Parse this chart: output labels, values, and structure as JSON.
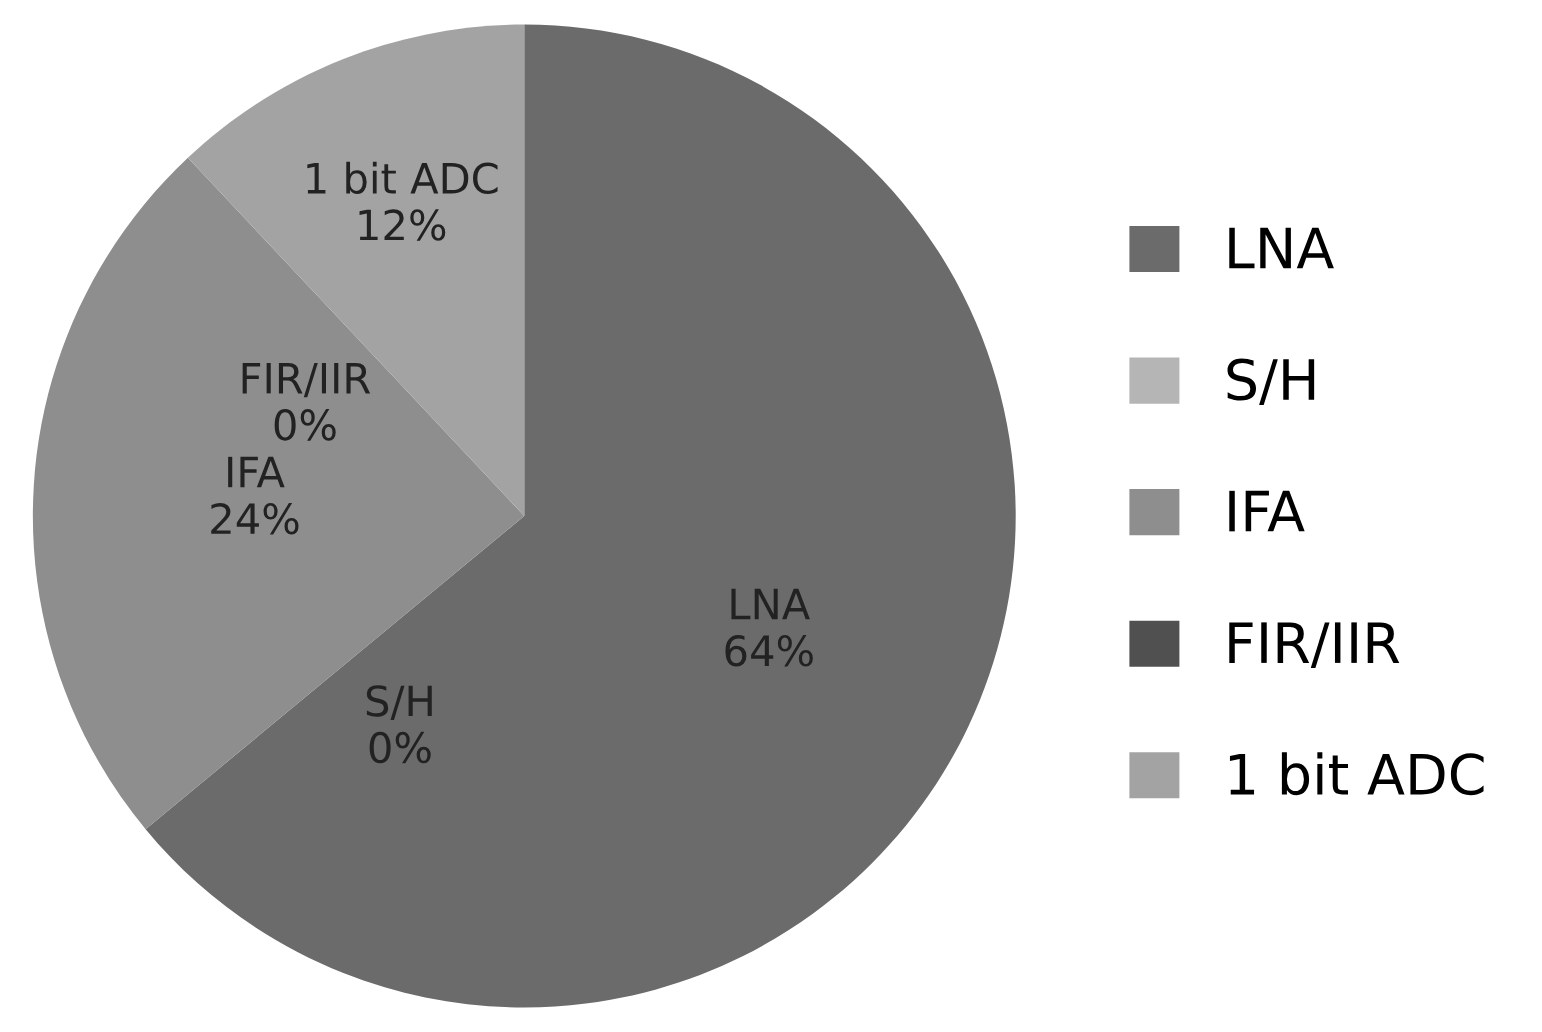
{
  "chart_data": {
    "type": "pie",
    "categories": [
      "LNA",
      "S/H",
      "IFA",
      "FIR/IIR",
      "1 bit ADC"
    ],
    "values": [
      64,
      0,
      24,
      0,
      12
    ],
    "value_labels": [
      "64%",
      "0%",
      "24%",
      "0%",
      "12%"
    ],
    "colors": [
      "#6b6b6b",
      "#b5b5b5",
      "#8e8e8e",
      "#505050",
      "#a3a3a3"
    ],
    "legend": "right"
  }
}
